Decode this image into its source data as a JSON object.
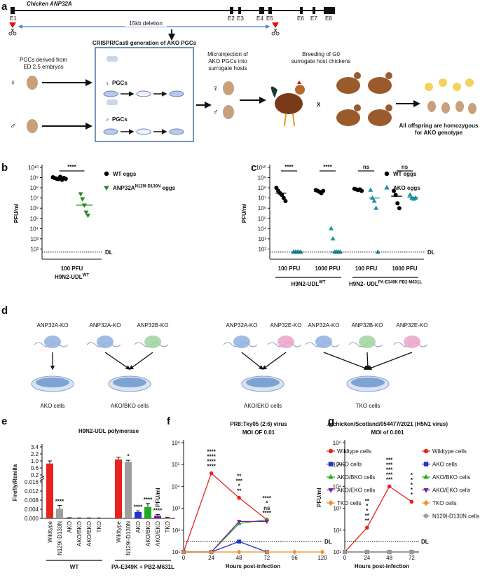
{
  "diagram_a": {
    "label": "a",
    "gene_title": "Chicken ANP32A",
    "exons": [
      "E1",
      "E2",
      "E3",
      "E4",
      "E5",
      "E6",
      "E7",
      "E8"
    ],
    "deletion": "15kb deletion",
    "box_title": "CRISPR/Cas9 generation of AKO PGCs",
    "pgc_source": [
      "PGCs derived from",
      "ED 2.5 embryos"
    ],
    "female": "♀",
    "male": "♂",
    "pgc_label": "PGCs",
    "microinjection": [
      "Microinjection of",
      "AKO PGCs into",
      "surrogate hosts"
    ],
    "breeding": [
      "Breeding of G0",
      "surrogate host chickens"
    ],
    "cross": "X",
    "offspring": [
      "All offspring are homozygous",
      "for AKO genotype"
    ]
  },
  "diagram_d": {
    "label": "d",
    "groups": [
      {
        "knockouts": [
          {
            "name": "ANP32A-KO",
            "color": "#8fb0e0"
          }
        ],
        "cells": "AKO cells"
      },
      {
        "knockouts": [
          {
            "name": "ANP32A-KO",
            "color": "#8fb0e0"
          },
          {
            "name": "ANP32B-KO",
            "color": "#9ed49e"
          }
        ],
        "cells": "AKO/BKO cells"
      },
      {
        "knockouts": [
          {
            "name": "ANP32A-KO",
            "color": "#8fb0e0"
          },
          {
            "name": "ANP32E-KO",
            "color": "#eaa5c8"
          }
        ],
        "cells": "AKO/EKO cells"
      },
      {
        "knockouts": [
          {
            "name": "ANP32A-KO",
            "color": "#8fb0e0"
          },
          {
            "name": "ANP32B-KO",
            "color": "#9ed49e"
          },
          {
            "name": "ANP32E-KO",
            "color": "#eaa5c8"
          }
        ],
        "cells": "TKO cells"
      }
    ]
  },
  "chart_data": [
    {
      "label": "b",
      "type": "dot",
      "ylabel": "PFU/ml",
      "log_y": true,
      "ylim": [
        10,
        10000000000
      ],
      "yticks": [
        {
          "value": 100,
          "label": "10²"
        },
        {
          "value": 1000,
          "label": "10³"
        },
        {
          "value": 10000,
          "label": "10⁴"
        },
        {
          "value": 100000,
          "label": "10⁵"
        },
        {
          "value": 1000000,
          "label": "10⁶"
        },
        {
          "value": 10000000,
          "label": "10⁷"
        },
        {
          "value": 100000000,
          "label": "10⁸"
        },
        {
          "value": 1000000000,
          "label": "10⁹"
        },
        {
          "value": 10000000000,
          "label": "10¹⁰"
        }
      ],
      "categories": [
        "100 PFU"
      ],
      "groups": [
        {
          "text": "H9N2-UDL",
          "sup": "WT"
        }
      ],
      "series": [
        {
          "name": "WT eggs",
          "color": "#000000",
          "marker": "circle",
          "values": [
            [
              1100000000,
              900000000,
              800000000,
              700000000,
              1200000000,
              600000000,
              950000000,
              750000000
            ]
          ],
          "means": [
            850000000
          ]
        },
        {
          "name": "ANP32A",
          "name_sup": "N129I-D130N",
          "name_end": " eggs",
          "color": "#1e8c1e",
          "marker": "triangle-down",
          "values": [
            [
              25000000,
              8000000,
              2000000,
              400000,
              200000
            ]
          ],
          "means": [
            2000000
          ]
        }
      ],
      "significance": [
        "****"
      ],
      "detection_limit": 50,
      "detection_label": "DL"
    },
    {
      "label": "c",
      "type": "dot",
      "ylabel": "PFU/ml",
      "log_y": true,
      "ylim": [
        10,
        10000000000
      ],
      "yticks": [
        {
          "value": 100,
          "label": "10²"
        },
        {
          "value": 1000,
          "label": "10³"
        },
        {
          "value": 10000,
          "label": "10⁴"
        },
        {
          "value": 100000,
          "label": "10⁵"
        },
        {
          "value": 1000000,
          "label": "10⁶"
        },
        {
          "value": 10000000,
          "label": "10⁷"
        },
        {
          "value": 100000000,
          "label": "10⁸"
        },
        {
          "value": 1000000000,
          "label": "10⁹"
        },
        {
          "value": 10000000000,
          "label": "10¹⁰"
        }
      ],
      "categories": [
        "100 PFU",
        "1000 PFU",
        "100 PFU",
        "1000 PFU"
      ],
      "groups": [
        {
          "text": "H9N2-UDL",
          "sup": "WT"
        },
        {
          "text": "H9N2- UDL",
          "sup": "PA-E349K PB2-M631L"
        }
      ],
      "series": [
        {
          "name": "WT eggs",
          "color": "#000000",
          "marker": "circle",
          "values": [
            [
              100000000,
              50000000,
              30000000,
              20000000,
              10000000,
              5000000
            ],
            [
              60000000,
              50000000,
              40000000,
              30000000,
              50000000
            ],
            [
              80000000,
              70000000,
              60000000,
              70000000,
              50000000
            ],
            [
              50000000,
              20000000,
              3000000,
              1000000
            ]
          ],
          "means": [
            30000000,
            45000000,
            65000000,
            15000000
          ]
        },
        {
          "name": "AKO eggs",
          "color": "#1f8fa0",
          "marker": "triangle",
          "values": [
            [
              50,
              50,
              50,
              50,
              50
            ],
            [
              10000,
              1000,
              50,
              50,
              50,
              50
            ],
            [
              60000000,
              10000000,
              5000000,
              1000000,
              50
            ],
            [
              20000000,
              10000000,
              8000000,
              10000000
            ]
          ],
          "means": [
            50,
            50,
            10000000,
            12000000
          ]
        }
      ],
      "significance": [
        "****",
        "****",
        "ns",
        "ns"
      ],
      "detection_limit": 50,
      "detection_label": "DL"
    },
    {
      "label": "e",
      "type": "bar",
      "title": "H9N2-UDL polymerase",
      "ylabel": "Firefly/Renilla",
      "ylim": [
        0,
        3.4
      ],
      "yticks": [
        {
          "value": 0,
          "label": "0.000"
        },
        0.004,
        0.008,
        0.012,
        0.016,
        0.2,
        0.6,
        {
          "value": 1,
          "label": "1.0"
        },
        2.2,
        3.4
      ],
      "axis_break": [
        0.016,
        0.2
      ],
      "categories": [
        "Wildtype",
        "N129I-D130N",
        "AKO",
        "AKO/BKO",
        "AKO/EKO",
        "TKO",
        "Wildtype",
        "N129I-D130N",
        "AKO",
        "AKO/BKO",
        "AKO/EKO",
        "TKO"
      ],
      "groups": [
        {
          "text": "WT"
        },
        {
          "text": "PA-E349K + PB2-M631L"
        }
      ],
      "colors": [
        "#e8231e",
        "#9e9e9e",
        "#2233cc",
        "#22aa22",
        "#7a1fa2",
        "#f28c28",
        "#e8231e",
        "#9e9e9e",
        "#2233cc",
        "#22aa22",
        "#7a1fa2",
        "#f28c28"
      ],
      "values": [
        0.85,
        0.0042,
        0.0002,
        0.0001,
        0.0001,
        0.0001,
        1.25,
        0.95,
        0.0028,
        0.005,
        0.0012,
        0.0003
      ],
      "errors": [
        0.15,
        0.0015,
        0.0001,
        0.0001,
        0.0001,
        0.0001,
        0.4,
        0.15,
        0.0005,
        0.0015,
        0.0005,
        0.0002
      ],
      "significance": [
        null,
        "****",
        null,
        null,
        null,
        null,
        null,
        "*",
        "****",
        "****",
        "****",
        null
      ]
    },
    {
      "label": "f",
      "type": "line",
      "title": "PR8:Tky05 (2:6) virus",
      "subtitle": "MOI OF 0.01",
      "xlabel": "Hours post-infection",
      "ylabel": "PFU/ml",
      "log_y": true,
      "x": [
        0,
        24,
        48,
        72,
        96,
        120
      ],
      "xlim": [
        0,
        120
      ],
      "xticks": [
        0,
        24,
        48,
        72,
        96,
        120
      ],
      "ylim": [
        10,
        1000000
      ],
      "yticks": [
        {
          "value": 10,
          "label": "10¹"
        },
        {
          "value": 100,
          "label": "10²"
        },
        {
          "value": 1000,
          "label": "10³"
        },
        {
          "value": 10000,
          "label": "10⁴"
        },
        {
          "value": 100000,
          "label": "10⁵"
        },
        {
          "value": 1000000,
          "label": "10⁶"
        }
      ],
      "series": [
        {
          "name": "Wildtype cells",
          "color": "#e8231e",
          "marker": "circle",
          "values": [
            10,
            40000,
            3000,
            300,
            null,
            null
          ]
        },
        {
          "name": "AKO cells",
          "color": "#2233cc",
          "marker": "square",
          "values": [
            10,
            10,
            30,
            10,
            null,
            null
          ]
        },
        {
          "name": "AKO/BKO cells",
          "color": "#22aa22",
          "marker": "triangle",
          "values": [
            10,
            10,
            200,
            300,
            null,
            null
          ]
        },
        {
          "name": "AKO/EKO cells",
          "color": "#7a1fa2",
          "marker": "triangle-down",
          "values": [
            10,
            10,
            250,
            250,
            null,
            null
          ]
        },
        {
          "name": "TKO cells",
          "color": "#f28c28",
          "marker": "diamond",
          "values": [
            10,
            10,
            10,
            10,
            10,
            10
          ]
        }
      ],
      "annotations": [
        {
          "x": 24,
          "texts": [
            "****",
            "****",
            "****",
            "****"
          ],
          "colors": [
            "#2233cc",
            "#22aa22",
            "#7a1fa2",
            "#f28c28"
          ]
        },
        {
          "x": 48,
          "texts": [
            "**",
            "***",
            "*",
            "**"
          ],
          "colors": [
            "#2233cc",
            "#22aa22",
            "#7a1fa2",
            "#f28c28"
          ]
        },
        {
          "x": 72,
          "texts": [
            "****",
            "*",
            "ns",
            "****"
          ],
          "colors": [
            "#2233cc",
            "#22aa22",
            "#7a1fa2",
            "#f28c28"
          ]
        }
      ],
      "detection_limit": 30,
      "detection_label": "DL"
    },
    {
      "label": "g",
      "type": "line",
      "title": "A/chicken/Scotland/054477/2021 (H5N1 virus)",
      "subtitle": "MOI of 0.001",
      "xlabel": "Hours post-infection",
      "ylabel": "PFU/ml",
      "log_y": true,
      "x": [
        0,
        24,
        48,
        72
      ],
      "xlim": [
        0,
        80
      ],
      "xticks": [
        0,
        24,
        48,
        72
      ],
      "ylim": [
        10,
        1000000
      ],
      "yticks": [
        {
          "value": 10,
          "label": "10¹"
        },
        {
          "value": 100,
          "label": "10²"
        },
        {
          "value": 1000,
          "label": "10³"
        },
        {
          "value": 10000,
          "label": "10⁴"
        },
        {
          "value": 100000,
          "label": "10⁵"
        },
        {
          "value": 1000000,
          "label": "10⁶"
        }
      ],
      "series": [
        {
          "name": "Wildtype cells",
          "color": "#e8231e",
          "marker": "circle",
          "values": [
            10,
            130,
            10000,
            2000
          ]
        },
        {
          "name": "AKO cells",
          "color": "#2233cc",
          "marker": "square",
          "values": [
            10,
            10,
            10,
            10
          ]
        },
        {
          "name": "AKO/BKO cells",
          "color": "#22aa22",
          "marker": "triangle",
          "values": [
            10,
            10,
            10,
            10
          ]
        },
        {
          "name": "AKO/EKO cells",
          "color": "#7a1fa2",
          "marker": "triangle-down",
          "values": [
            10,
            10,
            10,
            10
          ]
        },
        {
          "name": "TKO cells",
          "color": "#f28c28",
          "marker": "diamond",
          "values": [
            10,
            10,
            10,
            10
          ]
        },
        {
          "name": "N129I-D130N cells",
          "color": "#9e9e9e",
          "marker": "circle",
          "values": [
            10,
            10,
            10,
            10
          ]
        }
      ],
      "annotations": [
        {
          "x": 24,
          "texts": [
            "**",
            "*",
            "*",
            "**",
            "**"
          ],
          "colors": [
            "#2233cc",
            "#22aa22",
            "#7a1fa2",
            "#f28c28",
            "#9e9e9e"
          ]
        },
        {
          "x": 48,
          "texts": [
            "***",
            "***",
            "***",
            "***",
            "***"
          ],
          "colors": [
            "#2233cc",
            "#22aa22",
            "#7a1fa2",
            "#f28c28",
            "#9e9e9e"
          ]
        },
        {
          "x": 72,
          "texts": [
            "*",
            "*",
            "*",
            "*",
            "*"
          ],
          "colors": [
            "#2233cc",
            "#22aa22",
            "#7a1fa2",
            "#f28c28",
            "#9e9e9e"
          ]
        }
      ],
      "detection_limit": 30,
      "detection_label": "DL"
    }
  ]
}
